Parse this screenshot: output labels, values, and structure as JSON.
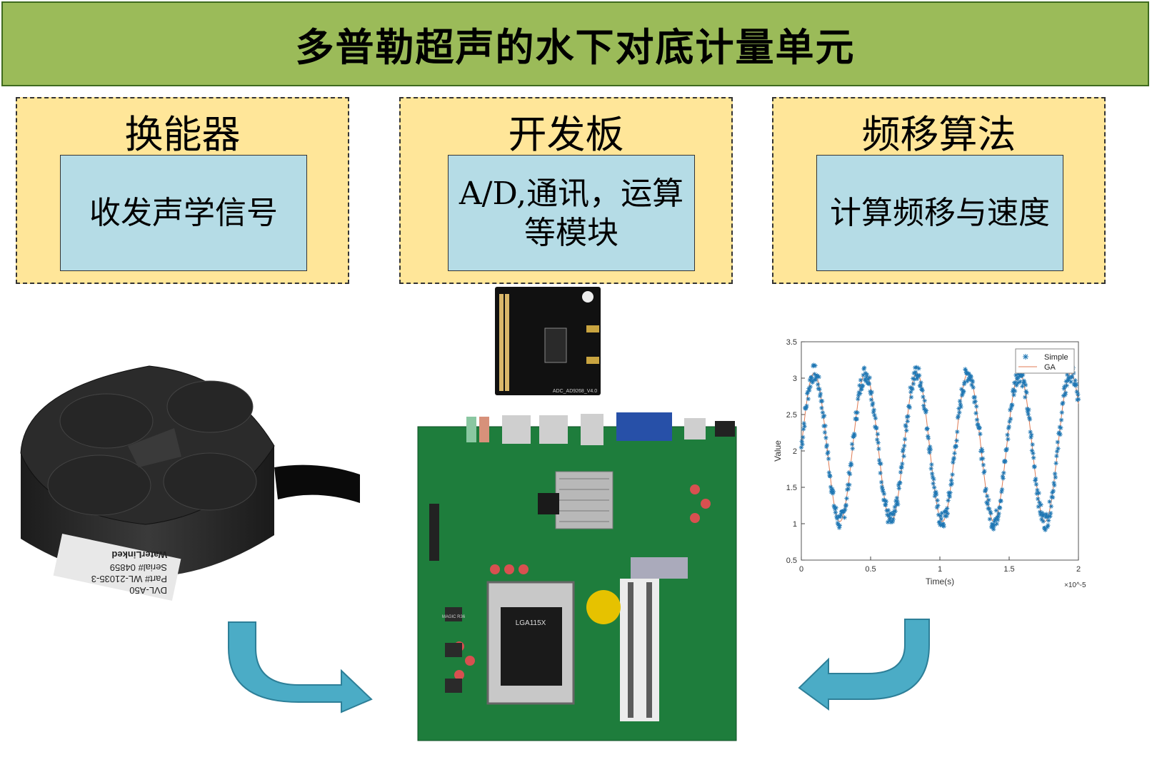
{
  "title": "多普勒超声的水下对底计量单元",
  "sections": [
    {
      "title": "换能器",
      "desc": "收发声学信号"
    },
    {
      "title": "开发板",
      "desc": "A/D,通讯，运算等模块"
    },
    {
      "title": "频移算法",
      "desc": "计算频移与速度"
    }
  ],
  "transducer": {
    "brand": "WaterLinked",
    "model": "DVL-A50",
    "part": "Part# WL-21035-3",
    "serial": "Serial# 04859"
  },
  "adc_board": {
    "label": "ADC_AD9268_V4.0"
  },
  "motherboard": {
    "socket_label": "LGA115X",
    "capacitor_label": "MAGIC R36"
  },
  "chart_data": {
    "type": "scatter",
    "xlabel": "Time(s)",
    "ylabel": "Value",
    "x_multiplier": "×10^-5",
    "xlim": [
      0,
      2
    ],
    "ylim": [
      0.5,
      3.5
    ],
    "xticks": [
      "0",
      "0.5",
      "1",
      "1.5",
      "2"
    ],
    "yticks": [
      "0.5",
      "1",
      "1.5",
      "2",
      "2.5",
      "3",
      "3.5"
    ],
    "legend": "top-right",
    "series": [
      {
        "name": "Simple",
        "marker": "*",
        "color": "#1f77b4",
        "model": {
          "amplitude": 1.02,
          "offset": 2.05,
          "frequency_per_unit": 2.7,
          "phase_deg": 0,
          "noise": 0.12
        }
      },
      {
        "name": "GA",
        "marker": "line",
        "color": "#e07b54",
        "model": {
          "amplitude": 1.02,
          "offset": 2.05,
          "frequency_per_unit": 2.7,
          "phase_deg": 0
        }
      }
    ]
  },
  "colors": {
    "banner": "#9bbb59",
    "section": "#ffe699",
    "inner": "#b5dce6",
    "arrow": "#4bacc6"
  }
}
